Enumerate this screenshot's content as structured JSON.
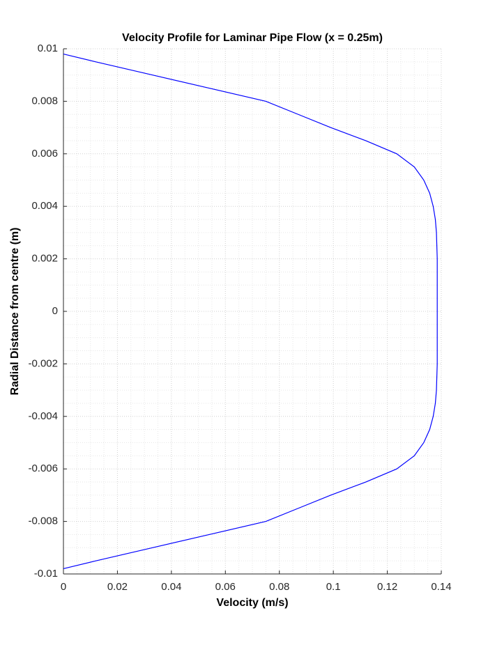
{
  "chart_data": {
    "type": "line",
    "title": "Velocity Profile for Laminar Pipe Flow (x = 0.25m)",
    "x_label": "Velocity (m/s)",
    "y_label": "Radial Distance from centre (m)",
    "x": [
      0,
      0.012,
      0.033,
      0.054,
      0.075,
      0.087,
      0.099,
      0.112,
      0.1235,
      0.13,
      0.1335,
      0.1357,
      0.137,
      0.1378,
      0.1382,
      0.1385,
      0.1385,
      0.1385,
      0.1385,
      0.1385,
      0.1382,
      0.1378,
      0.137,
      0.1357,
      0.1335,
      0.13,
      0.1235,
      0.112,
      0.099,
      0.087,
      0.075,
      0.054,
      0.033,
      0.012,
      0
    ],
    "values": [
      0.0098,
      0.0095,
      0.009,
      0.0085,
      0.008,
      0.0075,
      0.007,
      0.0065,
      0.006,
      0.0055,
      0.005,
      0.0045,
      0.004,
      0.0035,
      0.003,
      0.002,
      0.001,
      0,
      -0.001,
      -0.002,
      -0.003,
      -0.0035,
      -0.004,
      -0.0045,
      -0.005,
      -0.0055,
      -0.006,
      -0.0065,
      -0.007,
      -0.0075,
      -0.008,
      -0.0085,
      -0.009,
      -0.0095,
      -0.0098
    ],
    "color": "#0000ff",
    "xlim": [
      0,
      0.14
    ],
    "xticks": [
      0,
      0.02,
      0.04,
      0.06,
      0.08,
      0.1,
      0.12,
      0.14
    ],
    "ylim": [
      -0.01,
      0.01
    ],
    "yticks": [
      -0.01,
      -0.008,
      -0.006,
      -0.004,
      -0.002,
      0,
      0.002,
      0.004,
      0.006,
      0.008,
      0.01
    ],
    "grid": true,
    "minor_grid": true
  }
}
